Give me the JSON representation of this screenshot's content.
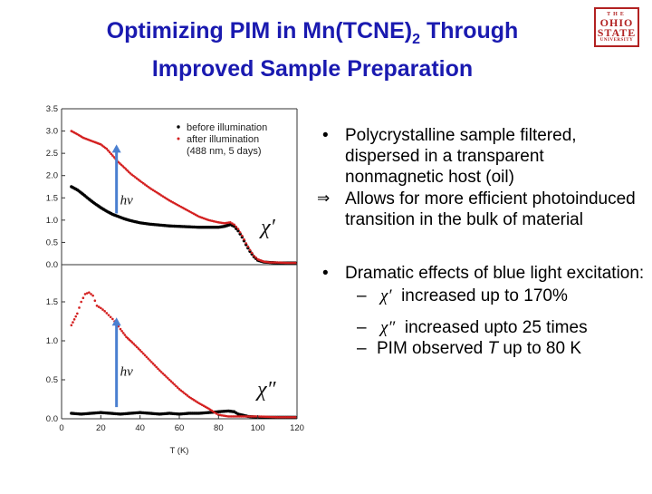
{
  "slide": {
    "title_line1_pre": "Optimizing PIM in Mn(TCNE)",
    "title_line1_sub": "2",
    "title_line1_post": " Through",
    "title_line2": "Improved Sample Preparation"
  },
  "logo": {
    "line1": "THE",
    "line2": "OHIO",
    "line3": "STATE",
    "line4": "UNIVERSITY",
    "color": "#b22222"
  },
  "chart_data": {
    "type": "scatter",
    "xlabel": "T (K)",
    "xlim": [
      0,
      120
    ],
    "x_ticks": [
      "0",
      "20",
      "40",
      "60",
      "80",
      "100",
      "120"
    ],
    "legend": {
      "placement": "top-right",
      "entries": [
        "before illumination",
        "after illumination",
        "(488 nm, 5 days)"
      ]
    },
    "panels": [
      {
        "name": "χ′",
        "ylim": [
          0,
          3.5
        ],
        "y_ticks": [
          "0.0",
          "0.5",
          "1.0",
          "1.5",
          "2.0",
          "2.5",
          "3.0",
          "3.5"
        ],
        "excitation_label": "hν",
        "series": [
          {
            "name": "before illumination",
            "color": "#000000",
            "points": [
              [
                5,
                1.75
              ],
              [
                8,
                1.68
              ],
              [
                11,
                1.58
              ],
              [
                14,
                1.47
              ],
              [
                17,
                1.37
              ],
              [
                20,
                1.28
              ],
              [
                23,
                1.2
              ],
              [
                26,
                1.13
              ],
              [
                29,
                1.08
              ],
              [
                32,
                1.03
              ],
              [
                35,
                0.99
              ],
              [
                40,
                0.94
              ],
              [
                45,
                0.91
              ],
              [
                50,
                0.89
              ],
              [
                55,
                0.87
              ],
              [
                60,
                0.86
              ],
              [
                65,
                0.85
              ],
              [
                70,
                0.84
              ],
              [
                75,
                0.84
              ],
              [
                80,
                0.84
              ],
              [
                83,
                0.86
              ],
              [
                86,
                0.9
              ],
              [
                88,
                0.86
              ],
              [
                90,
                0.76
              ],
              [
                92,
                0.62
              ],
              [
                94,
                0.45
              ],
              [
                96,
                0.3
              ],
              [
                98,
                0.18
              ],
              [
                100,
                0.1
              ],
              [
                103,
                0.06
              ],
              [
                106,
                0.05
              ],
              [
                110,
                0.04
              ],
              [
                115,
                0.04
              ],
              [
                120,
                0.04
              ]
            ]
          },
          {
            "name": "after illumination",
            "color": "#d42020",
            "points": [
              [
                5,
                3.0
              ],
              [
                8,
                2.93
              ],
              [
                11,
                2.85
              ],
              [
                14,
                2.8
              ],
              [
                17,
                2.75
              ],
              [
                20,
                2.7
              ],
              [
                23,
                2.6
              ],
              [
                26,
                2.45
              ],
              [
                29,
                2.3
              ],
              [
                32,
                2.18
              ],
              [
                35,
                2.05
              ],
              [
                40,
                1.88
              ],
              [
                45,
                1.72
              ],
              [
                50,
                1.58
              ],
              [
                55,
                1.44
              ],
              [
                60,
                1.32
              ],
              [
                65,
                1.2
              ],
              [
                70,
                1.08
              ],
              [
                75,
                1.0
              ],
              [
                80,
                0.95
              ],
              [
                83,
                0.93
              ],
              [
                86,
                0.95
              ],
              [
                88,
                0.9
              ],
              [
                90,
                0.8
              ],
              [
                92,
                0.65
              ],
              [
                94,
                0.48
              ],
              [
                96,
                0.33
              ],
              [
                98,
                0.2
              ],
              [
                100,
                0.12
              ],
              [
                103,
                0.07
              ],
              [
                106,
                0.05
              ],
              [
                110,
                0.05
              ],
              [
                115,
                0.04
              ],
              [
                120,
                0.04
              ]
            ]
          }
        ]
      },
      {
        "name": "χ″",
        "ylim": [
          0,
          2.0
        ],
        "y_ticks": [
          "0.0",
          "0.5",
          "1.0",
          "1.5"
        ],
        "excitation_label": "hν",
        "series": [
          {
            "name": "before illumination",
            "color": "#000000",
            "points": [
              [
                5,
                0.07
              ],
              [
                10,
                0.06
              ],
              [
                15,
                0.07
              ],
              [
                20,
                0.08
              ],
              [
                25,
                0.07
              ],
              [
                30,
                0.06
              ],
              [
                35,
                0.07
              ],
              [
                40,
                0.08
              ],
              [
                45,
                0.07
              ],
              [
                50,
                0.06
              ],
              [
                55,
                0.07
              ],
              [
                60,
                0.06
              ],
              [
                65,
                0.07
              ],
              [
                70,
                0.07
              ],
              [
                75,
                0.08
              ],
              [
                80,
                0.09
              ],
              [
                85,
                0.1
              ],
              [
                88,
                0.09
              ],
              [
                90,
                0.06
              ],
              [
                95,
                0.03
              ],
              [
                100,
                0.02
              ],
              [
                110,
                0.02
              ],
              [
                120,
                0.02
              ]
            ]
          },
          {
            "name": "after illumination",
            "color": "#d42020",
            "points": [
              [
                5,
                1.2
              ],
              [
                8,
                1.35
              ],
              [
                10,
                1.5
              ],
              [
                12,
                1.6
              ],
              [
                14,
                1.62
              ],
              [
                16,
                1.58
              ],
              [
                18,
                1.45
              ],
              [
                20,
                1.42
              ],
              [
                22,
                1.38
              ],
              [
                24,
                1.33
              ],
              [
                26,
                1.28
              ],
              [
                28,
                1.22
              ],
              [
                30,
                1.15
              ],
              [
                33,
                1.05
              ],
              [
                36,
                0.98
              ],
              [
                40,
                0.88
              ],
              [
                45,
                0.75
              ],
              [
                50,
                0.62
              ],
              [
                55,
                0.5
              ],
              [
                60,
                0.38
              ],
              [
                65,
                0.28
              ],
              [
                70,
                0.2
              ],
              [
                75,
                0.13
              ],
              [
                78,
                0.08
              ],
              [
                80,
                0.05
              ],
              [
                85,
                0.03
              ],
              [
                90,
                0.03
              ],
              [
                100,
                0.03
              ],
              [
                110,
                0.02
              ],
              [
                120,
                0.02
              ]
            ]
          }
        ]
      }
    ]
  },
  "bullets": {
    "b1_mark": "•",
    "b1_text": "Polycrystalline sample filtered, dispersed in a transparent nonmagnetic host (oil)",
    "b1_implies_mark": "⇒",
    "b1_implies_text": "Allows for more efficient photoinduced transition in the bulk of material",
    "b2_mark": "•",
    "b2_text": "Dramatic effects of blue light excitation:",
    "sub1_dash": "–",
    "sub1_symbol": "χ′",
    "sub1_text": "increased up to 170%",
    "sub2_dash": "–",
    "sub2_symbol": "χ″",
    "sub2_text": "increased upto 25 times",
    "sub3_dash": "–",
    "sub3_text_pre": "PIM observed ",
    "sub3_italic": "T",
    "sub3_text_post": " up to 80 K"
  }
}
